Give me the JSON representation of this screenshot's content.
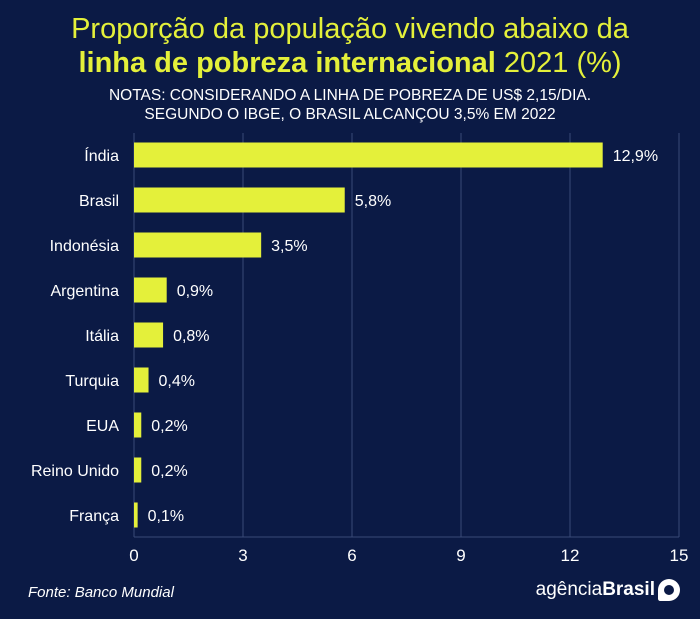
{
  "colors": {
    "background": "#0b1a45",
    "bar": "#e4f03a",
    "text": "#ffffff",
    "grid": "#3a4a78"
  },
  "chart_data": {
    "type": "bar",
    "orientation": "horizontal",
    "title_line1": "Proporção da população vivendo abaixo da",
    "title_line2_bold": "linha de pobreza internacional",
    "title_line2_rest": " 2021 (%)",
    "notes": [
      "NOTAS: CONSIDERANDO A LINHA DE POBREZA DE US$ 2,15/DIA.",
      "SEGUNDO O IBGE, O BRASIL ALCANÇOU 3,5% EM 2022"
    ],
    "categories": [
      "Índia",
      "Brasil",
      "Indonésia",
      "Argentina",
      "Itália",
      "Turquia",
      "EUA",
      "Reino Unido",
      "França"
    ],
    "values": [
      12.9,
      5.8,
      3.5,
      0.9,
      0.8,
      0.4,
      0.2,
      0.2,
      0.1
    ],
    "data_labels": [
      "12,9%",
      "5,8%",
      "3,5%",
      "0,9%",
      "0,8%",
      "0,4%",
      "0,2%",
      "0,2%",
      "0,1%"
    ],
    "xlim": [
      0,
      15
    ],
    "xticks": [
      0,
      3,
      6,
      9,
      12,
      15
    ],
    "grid": "vertical",
    "source": "Fonte: Banco Mundial"
  },
  "logo": {
    "text_light": "agência",
    "text_bold": "Brasil"
  }
}
